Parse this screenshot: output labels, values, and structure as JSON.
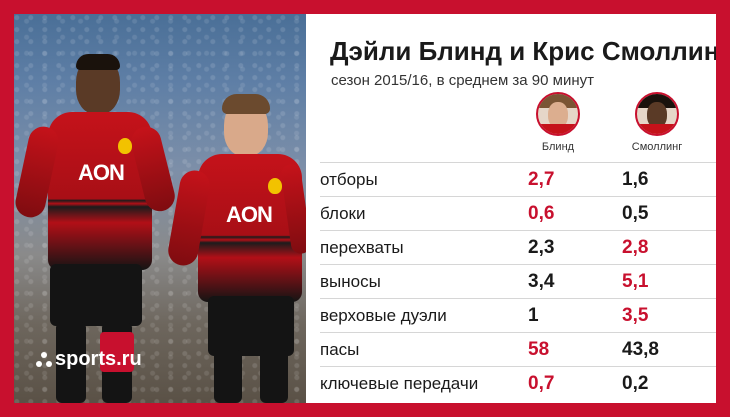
{
  "title": "Дэйли Блинд и Крис Смоллинг",
  "subtitle": "сезон 2015/16, в среднем за 90 минут",
  "brand": "sports.ru",
  "colors": {
    "accent": "#c8102e",
    "text": "#1a1a1a"
  },
  "players": [
    {
      "name": "Блинд"
    },
    {
      "name": "Смоллинг"
    }
  ],
  "jersey_sponsor": "AON",
  "rows": [
    {
      "label": "отборы",
      "blind": "2,7",
      "smalling": "1,6",
      "leader": "blind"
    },
    {
      "label": "блоки",
      "blind": "0,6",
      "smalling": "0,5",
      "leader": "blind"
    },
    {
      "label": "перехваты",
      "blind": "2,3",
      "smalling": "2,8",
      "leader": "smalling"
    },
    {
      "label": "выносы",
      "blind": "3,4",
      "smalling": "5,1",
      "leader": "smalling"
    },
    {
      "label": "верховые дуэли",
      "blind": "1",
      "smalling": "3,5",
      "leader": "smalling"
    },
    {
      "label": "пасы",
      "blind": "58",
      "smalling": "43,8",
      "leader": "blind"
    },
    {
      "label": "ключевые передачи",
      "blind": "0,7",
      "smalling": "0,2",
      "leader": "blind"
    }
  ]
}
